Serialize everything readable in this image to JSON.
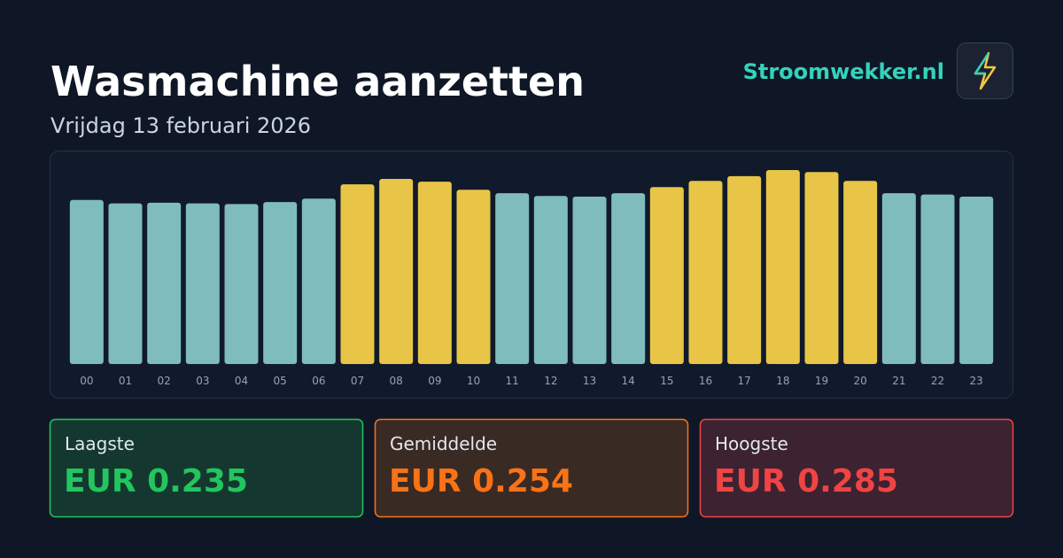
{
  "header": {
    "title": "Wasmachine aanzetten",
    "subtitle": "Vrijdag 13 februari 2026",
    "brand": "Stroomwekker.nl"
  },
  "chart_data": {
    "type": "bar",
    "categories": [
      "00",
      "01",
      "02",
      "03",
      "04",
      "05",
      "06",
      "07",
      "08",
      "09",
      "10",
      "11",
      "12",
      "13",
      "14",
      "15",
      "16",
      "17",
      "18",
      "19",
      "20",
      "21",
      "22",
      "23"
    ],
    "values": [
      0.241,
      0.236,
      0.237,
      0.236,
      0.235,
      0.238,
      0.243,
      0.264,
      0.272,
      0.268,
      0.256,
      0.251,
      0.247,
      0.246,
      0.251,
      0.26,
      0.269,
      0.276,
      0.285,
      0.282,
      0.269,
      0.251,
      0.249,
      0.246
    ],
    "colors": [
      "#7fbcbd",
      "#7fbcbd",
      "#7fbcbd",
      "#7fbcbd",
      "#7fbcbd",
      "#7fbcbd",
      "#7fbcbd",
      "#e8c547",
      "#e8c547",
      "#e8c547",
      "#e8c547",
      "#7fbcbd",
      "#7fbcbd",
      "#7fbcbd",
      "#7fbcbd",
      "#e8c547",
      "#e8c547",
      "#e8c547",
      "#e8c547",
      "#e8c547",
      "#e8c547",
      "#7fbcbd",
      "#7fbcbd",
      "#7fbcbd"
    ],
    "ylim": [
      0,
      0.285
    ]
  },
  "stats": [
    {
      "label": "Laagste",
      "value": "EUR 0.235"
    },
    {
      "label": "Gemiddelde",
      "value": "EUR 0.254"
    },
    {
      "label": "Hoogste",
      "value": "EUR 0.285"
    }
  ]
}
